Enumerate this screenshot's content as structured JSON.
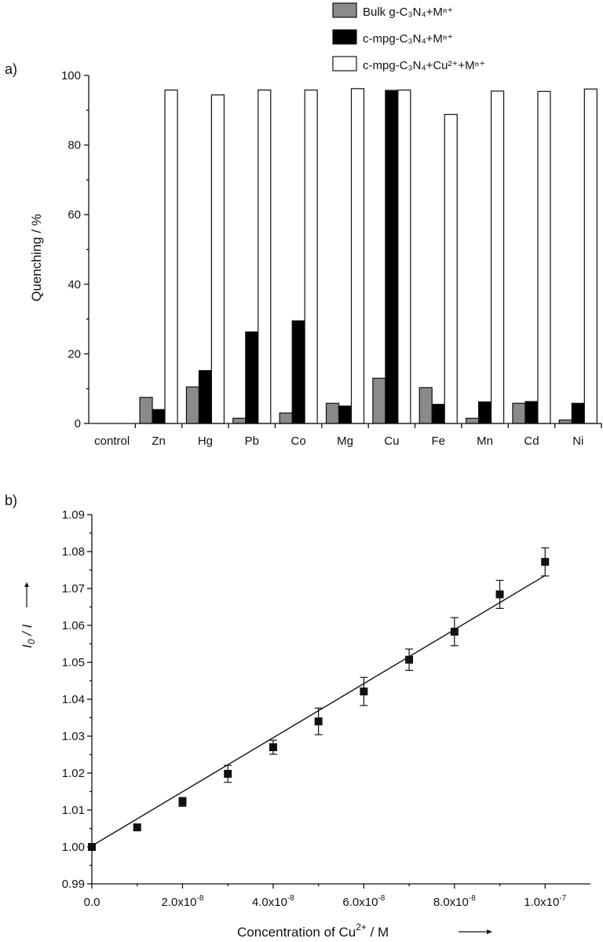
{
  "chart_data": [
    {
      "panel_label": "a)",
      "type": "bar",
      "categories": [
        "control",
        "Zn",
        "Hg",
        "Pb",
        "Co",
        "Mg",
        "Cu",
        "Fe",
        "Mn",
        "Cd",
        "Ni"
      ],
      "series": [
        {
          "name": "Bulk g-C₃N₄+Mⁿ⁺",
          "color": "#8a8a8a",
          "values": [
            0,
            7.5,
            10.5,
            1.5,
            3,
            5.8,
            13,
            10.3,
            1.5,
            5.8,
            1
          ]
        },
        {
          "name": "c-mpg-C₃N₄+Mⁿ⁺",
          "color": "#000000",
          "values": [
            0,
            4,
            15.2,
            26.3,
            29.5,
            5,
            95.7,
            5.5,
            6.2,
            6.3,
            5.8
          ]
        },
        {
          "name": "c-mpg-C₃N₄+Cu²⁺+Mⁿ⁺",
          "color": "#ffffff",
          "values": [
            0,
            95.8,
            94.4,
            95.8,
            95.8,
            96.2,
            95.8,
            88.8,
            95.5,
            95.4,
            96.1
          ]
        }
      ],
      "ylabel": "Quenching / %",
      "xlabel": "",
      "ylim": [
        0,
        100
      ],
      "yticks": [
        0,
        20,
        40,
        60,
        80,
        100
      ],
      "ytick_labels": [
        "0",
        "20",
        "40",
        "60",
        "80",
        "100"
      ],
      "grid": false,
      "legend_position": "top-right"
    },
    {
      "panel_label": "b)",
      "type": "scatter",
      "x": [
        0,
        1e-08,
        2e-08,
        3e-08,
        4e-08,
        5e-08,
        6e-08,
        7e-08,
        8e-08,
        9e-08,
        1e-07
      ],
      "y": [
        1.0,
        1.0053,
        1.0122,
        1.0198,
        1.027,
        1.034,
        1.0421,
        1.0507,
        1.0583,
        1.0684,
        1.0772
      ],
      "yerr": [
        0.0006,
        0.0007,
        0.0012,
        0.0023,
        0.0019,
        0.0036,
        0.0038,
        0.0029,
        0.0038,
        0.0038,
        0.0038
      ],
      "fit_line": {
        "x": [
          0,
          1e-07
        ],
        "y": [
          1.0003,
          1.0735
        ]
      },
      "xlabel_main": "Concentration of Cu",
      "xlabel_sup": "2+",
      "xlabel_unit": " / M",
      "ylabel_main": "I",
      "ylabel_sub": "0",
      "ylabel_rest": " / I",
      "xlim": [
        0,
        1.1e-07
      ],
      "ylim": [
        0.99,
        1.09
      ],
      "xticks": [
        0,
        2e-08,
        4e-08,
        6e-08,
        8e-08,
        1e-07
      ],
      "xtick_mantissas": [
        "0.0",
        "2.0x10",
        "4.0x10",
        "6.0x10",
        "8.0x10",
        "1.0x10"
      ],
      "xtick_exponents": [
        "",
        "-8",
        "-8",
        "-8",
        "-8",
        "-7"
      ],
      "yticks": [
        0.99,
        1.0,
        1.01,
        1.02,
        1.03,
        1.04,
        1.05,
        1.06,
        1.07,
        1.08,
        1.09
      ],
      "ytick_labels": [
        "0.99",
        "1.00",
        "1.01",
        "1.02",
        "1.03",
        "1.04",
        "1.05",
        "1.06",
        "1.07",
        "1.08",
        "1.09"
      ],
      "grid": false
    }
  ]
}
